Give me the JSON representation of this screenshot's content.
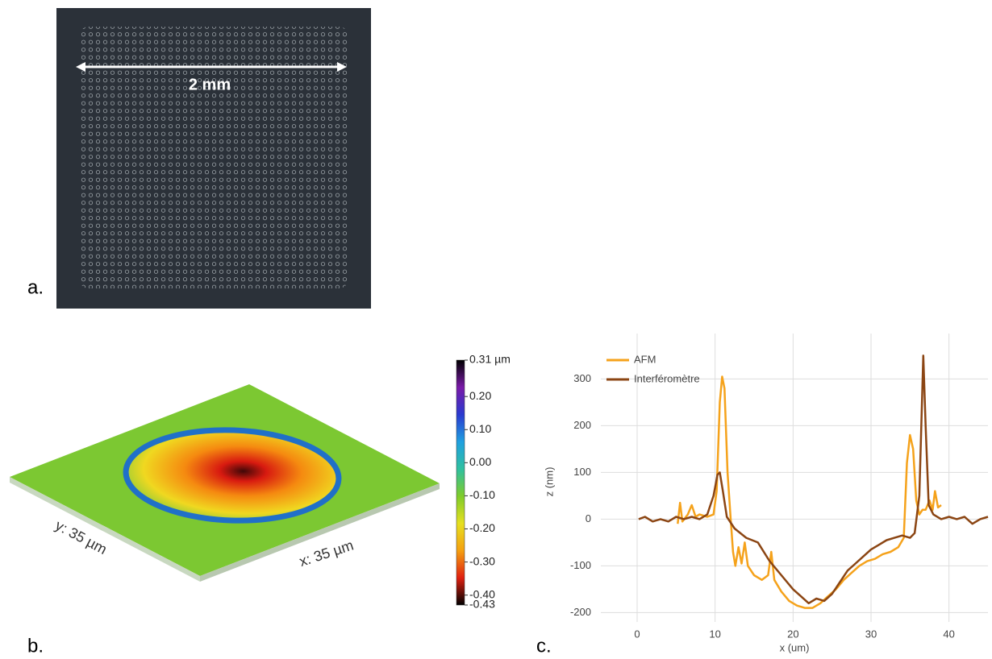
{
  "panel_labels": {
    "a": "a.",
    "b": "b.",
    "c": "c."
  },
  "photo": {
    "scale_label": "2 mm"
  },
  "surface": {
    "x_label": "x: 35 µm",
    "y_label": "y: 35 µm"
  },
  "chart_data": [
    {
      "type": "colorbar",
      "ylim": [
        -0.43,
        0.31
      ],
      "yticks": [
        {
          "value": 0.31,
          "label": "0.31 µm"
        },
        {
          "value": 0.2,
          "label": "0.20"
        },
        {
          "value": 0.1,
          "label": "0.10"
        },
        {
          "value": 0,
          "label": "0.00"
        },
        {
          "value": -0.1,
          "label": "-0.10"
        },
        {
          "value": -0.2,
          "label": "-0.20"
        },
        {
          "value": -0.3,
          "label": "-0.30"
        },
        {
          "value": -0.4,
          "label": "-0.40"
        },
        {
          "value": -0.43,
          "label": "-0.43"
        }
      ],
      "colormap": [
        "#000000",
        "#7a1aa8",
        "#2a3ad0",
        "#1fa0e0",
        "#2fc0a0",
        "#7fcc2a",
        "#e6e020",
        "#f5a010",
        "#e02010",
        "#000000"
      ]
    },
    {
      "type": "line",
      "xlabel": "x (um)",
      "ylabel": "z (nm)",
      "xlim": [
        -9,
        45
      ],
      "ylim": [
        -220,
        380
      ],
      "xticks": [
        0,
        10,
        20,
        30,
        40
      ],
      "yticks": [
        -200,
        -100,
        0,
        100,
        200,
        300
      ],
      "grid": true,
      "legend": "upper-left",
      "series": [
        {
          "name": "AFM",
          "color": "#f5a21b",
          "x": [
            5.2,
            5.5,
            5.8,
            6.5,
            7,
            7.5,
            8,
            9,
            9.8,
            10.2,
            10.6,
            10.9,
            11.2,
            11.6,
            12,
            12.3,
            12.6,
            13,
            13.4,
            13.8,
            14.2,
            15,
            16,
            16.8,
            17.2,
            17.6,
            18.5,
            19.5,
            20.5,
            21.5,
            22.5,
            23.5,
            24.5,
            25.5,
            26.5,
            27.5,
            28.5,
            29.5,
            30.5,
            31.5,
            32.5,
            33.5,
            34.2,
            34.6,
            35,
            35.4,
            35.8,
            36.2,
            36.6,
            37,
            37.5,
            37.9,
            38.2,
            38.6,
            39
          ],
          "values": [
            -10,
            35,
            -5,
            10,
            30,
            5,
            10,
            5,
            10,
            60,
            250,
            305,
            280,
            100,
            0,
            -70,
            -100,
            -60,
            -95,
            -50,
            -100,
            -120,
            -130,
            -120,
            -70,
            -130,
            -155,
            -175,
            -185,
            -190,
            -190,
            -180,
            -165,
            -150,
            -130,
            -115,
            -100,
            -90,
            -85,
            -75,
            -70,
            -60,
            -40,
            120,
            180,
            150,
            40,
            10,
            20,
            20,
            40,
            20,
            60,
            25,
            30
          ]
        },
        {
          "name": "Interféromètre",
          "color": "#8b4513",
          "x": [
            0.2,
            1,
            2,
            3,
            4,
            5,
            6,
            7,
            8,
            9,
            9.8,
            10.3,
            10.6,
            11,
            11.5,
            12.5,
            14,
            15.5,
            17,
            18.5,
            20,
            21,
            22,
            23,
            24,
            25,
            26,
            27,
            28,
            29,
            30,
            31,
            32,
            33,
            34,
            35,
            35.6,
            36.2,
            36.7,
            37,
            37.4,
            38,
            39,
            40,
            41,
            42,
            43,
            44,
            45
          ],
          "values": [
            0,
            5,
            -5,
            0,
            -5,
            5,
            0,
            5,
            0,
            10,
            50,
            95,
            100,
            60,
            5,
            -20,
            -40,
            -50,
            -90,
            -120,
            -150,
            -165,
            -180,
            -170,
            -175,
            -160,
            -135,
            -110,
            -95,
            -80,
            -65,
            -55,
            -45,
            -40,
            -35,
            -40,
            -30,
            50,
            350,
            200,
            30,
            10,
            0,
            5,
            0,
            5,
            -10,
            0,
            5
          ]
        }
      ]
    }
  ]
}
